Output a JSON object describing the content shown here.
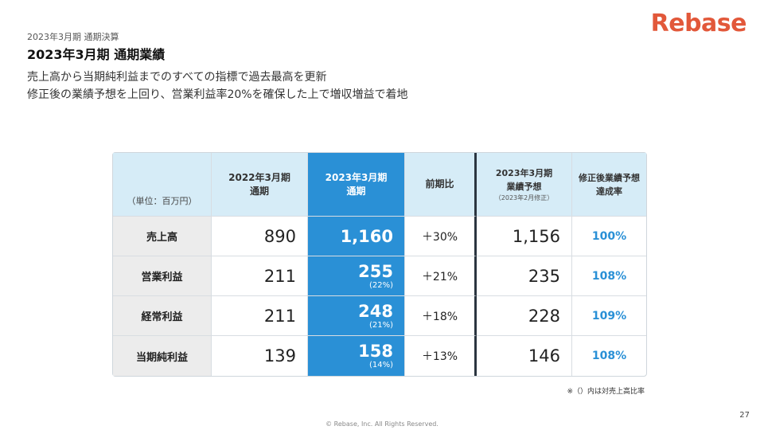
{
  "logo": "Rebase",
  "supertitle": "2023年3月期 通期決算",
  "title": "2023年3月期 通期業績",
  "lead": [
    "売上高から当期純利益までのすべての指標で過去最高を更新",
    "修正後の業績予想を上回り、営業利益率20%を確保した上で増収増益で着地"
  ],
  "table": {
    "unit": "（単位：百万円）",
    "headers": {
      "prev": [
        "2022年3月期",
        "通期"
      ],
      "cur": [
        "2023年3月期",
        "通期"
      ],
      "yoy": "前期比",
      "forecast": [
        "2023年3月期",
        "業績予想"
      ],
      "forecast_note": "（2023年2月修正）",
      "achievement": [
        "修正後業績予想",
        "達成率"
      ]
    },
    "rows": [
      {
        "label": "売上高",
        "prev": "890",
        "cur": "1,160",
        "cur_pct": "",
        "yoy": "＋30%",
        "forecast": "1,156",
        "achievement": "100%"
      },
      {
        "label": "営業利益",
        "prev": "211",
        "cur": "255",
        "cur_pct": "(22%)",
        "yoy": "＋21%",
        "forecast": "235",
        "achievement": "108%"
      },
      {
        "label": "経常利益",
        "prev": "211",
        "cur": "248",
        "cur_pct": "(21%)",
        "yoy": "＋18%",
        "forecast": "228",
        "achievement": "109%"
      },
      {
        "label": "当期純利益",
        "prev": "139",
        "cur": "158",
        "cur_pct": "(14%)",
        "yoy": "＋13%",
        "forecast": "146",
        "achievement": "108%"
      }
    ]
  },
  "note": "※（）内は対売上高比率",
  "page_number": "27",
  "copyright": "© Rebase, Inc. All Rights Reserved.",
  "colors": {
    "brand": "#e2583a",
    "accent": "#2a90d6",
    "header_bg": "#d6ecf7"
  }
}
